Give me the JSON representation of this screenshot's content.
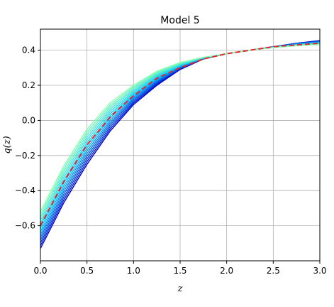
{
  "chart_data": {
    "type": "line",
    "title": "Model 5",
    "xlabel": "z",
    "ylabel": "q(z)",
    "xlim": [
      0.0,
      3.0
    ],
    "ylim": [
      -0.8,
      0.52
    ],
    "grid": true,
    "x_ticks": [
      "0.0",
      "0.5",
      "1.0",
      "1.5",
      "2.0",
      "2.5",
      "3.0"
    ],
    "x_tick_values": [
      0.0,
      0.5,
      1.0,
      1.5,
      2.0,
      2.5,
      3.0
    ],
    "y_ticks": [
      "−0.6",
      "−0.4",
      "−0.2",
      "0.0",
      "0.2",
      "0.4"
    ],
    "y_tick_values": [
      -0.6,
      -0.4,
      -0.2,
      0.0,
      0.2,
      0.4
    ],
    "ensemble": {
      "count": 14,
      "q0_range": [
        -0.73,
        -0.52
      ],
      "q_end_range": [
        0.455,
        0.432
      ],
      "color_start": "#0000cc",
      "color_mid": "#00c8ff",
      "color_end": "#88ffb0",
      "x": [
        0.0,
        0.25,
        0.5,
        0.75,
        1.0,
        1.25,
        1.5,
        1.75,
        2.0,
        2.25,
        2.5,
        2.75,
        3.0
      ],
      "first_values": [
        -0.73,
        -0.47,
        -0.25,
        -0.06,
        0.09,
        0.2,
        0.29,
        0.35,
        0.38,
        0.4,
        0.42,
        0.44,
        0.455
      ],
      "last_values": [
        -0.52,
        -0.26,
        -0.05,
        0.1,
        0.2,
        0.28,
        0.33,
        0.36,
        0.38,
        0.4,
        0.415,
        0.425,
        0.432
      ]
    },
    "series": [
      {
        "x": [
          0.0,
          0.25,
          0.5,
          0.75,
          1.0,
          1.25,
          1.5,
          1.75,
          2.0,
          2.25,
          2.5,
          2.75,
          3.0
        ],
        "values": [
          -0.6,
          -0.35,
          -0.14,
          0.02,
          0.14,
          0.24,
          0.3,
          0.35,
          0.38,
          0.4,
          0.42,
          0.43,
          0.44
        ],
        "color": "#e8232a",
        "style": "dashed"
      }
    ]
  }
}
